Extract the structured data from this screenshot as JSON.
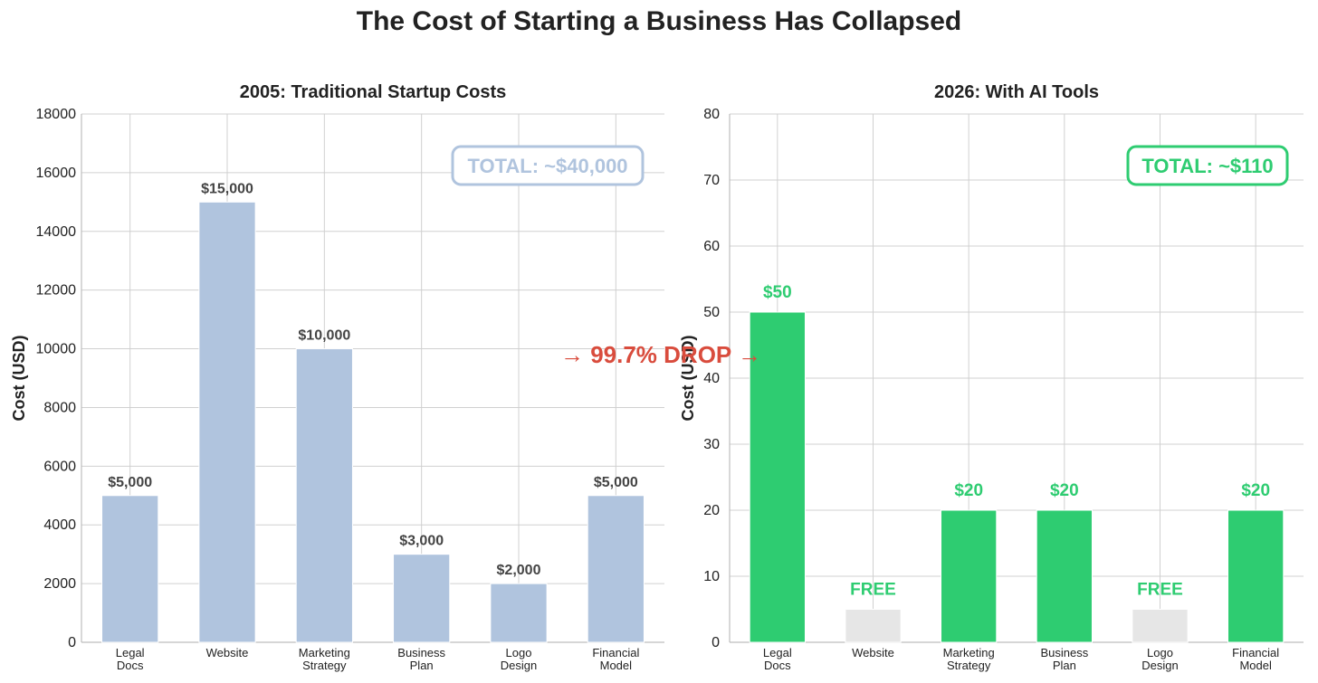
{
  "figure": {
    "title": "The Cost of Starting a Business Has Collapsed",
    "annotation": "→ 99.7% DROP →",
    "annotation_color": "#d94c3d"
  },
  "chart_data": [
    {
      "type": "bar",
      "title": "2005: Traditional Startup Costs",
      "ylabel": "Cost (USD)",
      "xlabel": "",
      "categories": [
        "Legal\nDocs",
        "Website",
        "Marketing\nStrategy",
        "Business\nPlan",
        "Logo\nDesign",
        "Financial\nModel"
      ],
      "values": [
        5000,
        15000,
        10000,
        3000,
        2000,
        5000
      ],
      "value_labels": [
        "$5,000",
        "$15,000",
        "$10,000",
        "$3,000",
        "$2,000",
        "$5,000"
      ],
      "ylim": [
        0,
        18000
      ],
      "yticks": [
        0,
        2000,
        4000,
        6000,
        8000,
        10000,
        12000,
        14000,
        16000,
        18000
      ],
      "grid": true,
      "bar_color": "#b0c4de",
      "label_color": "#444444",
      "total_label": "TOTAL: ~$40,000",
      "total_color": "#b0c4de",
      "total_placement": "top-right"
    },
    {
      "type": "bar",
      "title": "2026: With AI Tools",
      "ylabel": "Cost (USD)",
      "xlabel": "",
      "categories": [
        "Legal\nDocs",
        "Website",
        "Marketing\nStrategy",
        "Business\nPlan",
        "Logo\nDesign",
        "Financial\nModel"
      ],
      "values": [
        50,
        5,
        20,
        20,
        5,
        20
      ],
      "value_labels": [
        "$50",
        "FREE",
        "$20",
        "$20",
        "FREE",
        "$20"
      ],
      "bar_colors": [
        "#2ecc71",
        "#e6e6e6",
        "#2ecc71",
        "#2ecc71",
        "#e6e6e6",
        "#2ecc71"
      ],
      "ylim": [
        0,
        80
      ],
      "yticks": [
        0,
        10,
        20,
        30,
        40,
        50,
        60,
        70,
        80
      ],
      "grid": true,
      "label_color": "#2ecc71",
      "total_label": "TOTAL: ~$110",
      "total_color": "#2ecc71",
      "total_placement": "top-right"
    }
  ]
}
